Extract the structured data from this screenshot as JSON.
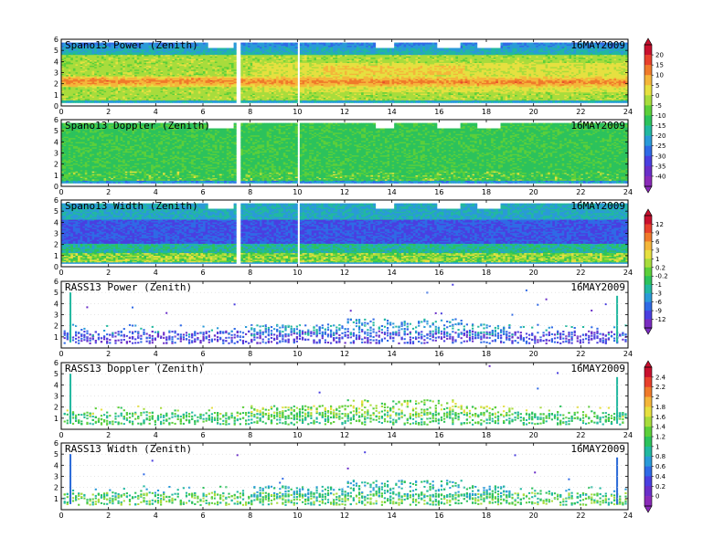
{
  "chart_data": [
    {
      "type": "heatmap",
      "title": "Spano13 Power (Zenith)",
      "date": "16MAY2009",
      "xlim": [
        0,
        24
      ],
      "ylim": [
        0,
        6
      ],
      "x_ticks": [
        "0",
        "2",
        "4",
        "6",
        "8",
        "10",
        "12",
        "14",
        "16",
        "18",
        "20",
        "22",
        "24"
      ],
      "y_ticks": [
        "0",
        "1",
        "2",
        "3",
        "4",
        "5",
        "6"
      ],
      "colorbar": "power",
      "gaps_x": [
        [
          7.3,
          7.55
        ]
      ]
    },
    {
      "type": "heatmap",
      "title": "Spano13 Doppler (Zenith)",
      "date": "16MAY2009",
      "xlim": [
        0,
        24
      ],
      "ylim": [
        0,
        6
      ],
      "x_ticks": [
        "0",
        "2",
        "4",
        "6",
        "8",
        "10",
        "12",
        "14",
        "16",
        "18",
        "20",
        "22",
        "24"
      ],
      "y_ticks": [
        "0",
        "1",
        "2",
        "3",
        "4",
        "5",
        "6"
      ],
      "colorbar": "power",
      "gaps_x": [
        [
          7.3,
          7.55
        ]
      ]
    },
    {
      "type": "heatmap",
      "title": "Spano13 Width (Zenith)",
      "date": "16MAY2009",
      "xlim": [
        0,
        24
      ],
      "ylim": [
        0,
        6
      ],
      "x_ticks": [
        "0",
        "2",
        "4",
        "6",
        "8",
        "10",
        "12",
        "14",
        "16",
        "18",
        "20",
        "22",
        "24"
      ],
      "y_ticks": [
        "0",
        "1",
        "2",
        "3",
        "4",
        "5",
        "6"
      ],
      "colorbar": "doppler",
      "gaps_x": [
        [
          7.3,
          7.55
        ]
      ]
    },
    {
      "type": "heatmap",
      "title": "RASS13 Power (Zenith)",
      "date": "16MAY2009",
      "xlim": [
        0,
        24
      ],
      "ylim": [
        0,
        6
      ],
      "x_ticks": [
        "0",
        "2",
        "4",
        "6",
        "8",
        "10",
        "12",
        "14",
        "16",
        "18",
        "20",
        "22",
        "24"
      ],
      "y_ticks": [
        "1",
        "2",
        "3",
        "4",
        "5",
        "6"
      ],
      "colorbar": "doppler"
    },
    {
      "type": "heatmap",
      "title": "RASS13 Doppler (Zenith)",
      "date": "16MAY2009",
      "xlim": [
        0,
        24
      ],
      "ylim": [
        0,
        6
      ],
      "x_ticks": [
        "0",
        "2",
        "4",
        "6",
        "8",
        "10",
        "12",
        "14",
        "16",
        "18",
        "20",
        "22",
        "24"
      ],
      "y_ticks": [
        "1",
        "2",
        "3",
        "4",
        "5",
        "6"
      ],
      "colorbar": "width"
    },
    {
      "type": "heatmap",
      "title": "RASS13 Width (Zenith)",
      "date": "16MAY2009",
      "xlim": [
        0,
        24
      ],
      "ylim": [
        0,
        6
      ],
      "x_ticks": [
        "0",
        "2",
        "4",
        "6",
        "8",
        "10",
        "12",
        "14",
        "16",
        "18",
        "20",
        "22",
        "24"
      ],
      "y_ticks": [
        "1",
        "2",
        "3",
        "4",
        "5",
        "6"
      ],
      "colorbar": "width"
    }
  ],
  "colorbars": {
    "power": {
      "labels": [
        "20",
        "15",
        "10",
        "5",
        "0",
        "-5",
        "-10",
        "-15",
        "-20",
        "-25",
        "-30",
        "-35",
        "-40"
      ],
      "colors": [
        "#c8102e",
        "#e8402c",
        "#f07a2a",
        "#f4b63a",
        "#e6e040",
        "#a8dc3c",
        "#5ccf3a",
        "#2cc25c",
        "#22b8a0",
        "#2a9ad8",
        "#2f6ae6",
        "#4a3fe0",
        "#6a2ec8",
        "#8a2ab8"
      ]
    },
    "doppler": {
      "labels": [
        "12",
        "9",
        "6",
        "3",
        "1",
        "0.2",
        "-0.2",
        "-1",
        "-3",
        "-6",
        "-9",
        "-12"
      ],
      "colors": [
        "#c8102e",
        "#e8402c",
        "#f07a2a",
        "#f4b63a",
        "#e6e040",
        "#a8dc3c",
        "#5ccf3a",
        "#2cc25c",
        "#22b8a0",
        "#2a9ad8",
        "#2f6ae6",
        "#4a3fe0",
        "#7a2cc0"
      ]
    },
    "width": {
      "labels": [
        "2.4",
        "2.2",
        "2",
        "1.8",
        "1.6",
        "1.4",
        "1.2",
        "1",
        "0.8",
        "0.6",
        "0.4",
        "0.2",
        "0"
      ],
      "colors": [
        "#c8102e",
        "#e8402c",
        "#f07a2a",
        "#f4b63a",
        "#e6e040",
        "#a8dc3c",
        "#5ccf3a",
        "#2cc25c",
        "#22b8a0",
        "#2a9ad8",
        "#2f6ae6",
        "#4a3fe0",
        "#6a2ec8",
        "#8a2ab8"
      ]
    }
  }
}
